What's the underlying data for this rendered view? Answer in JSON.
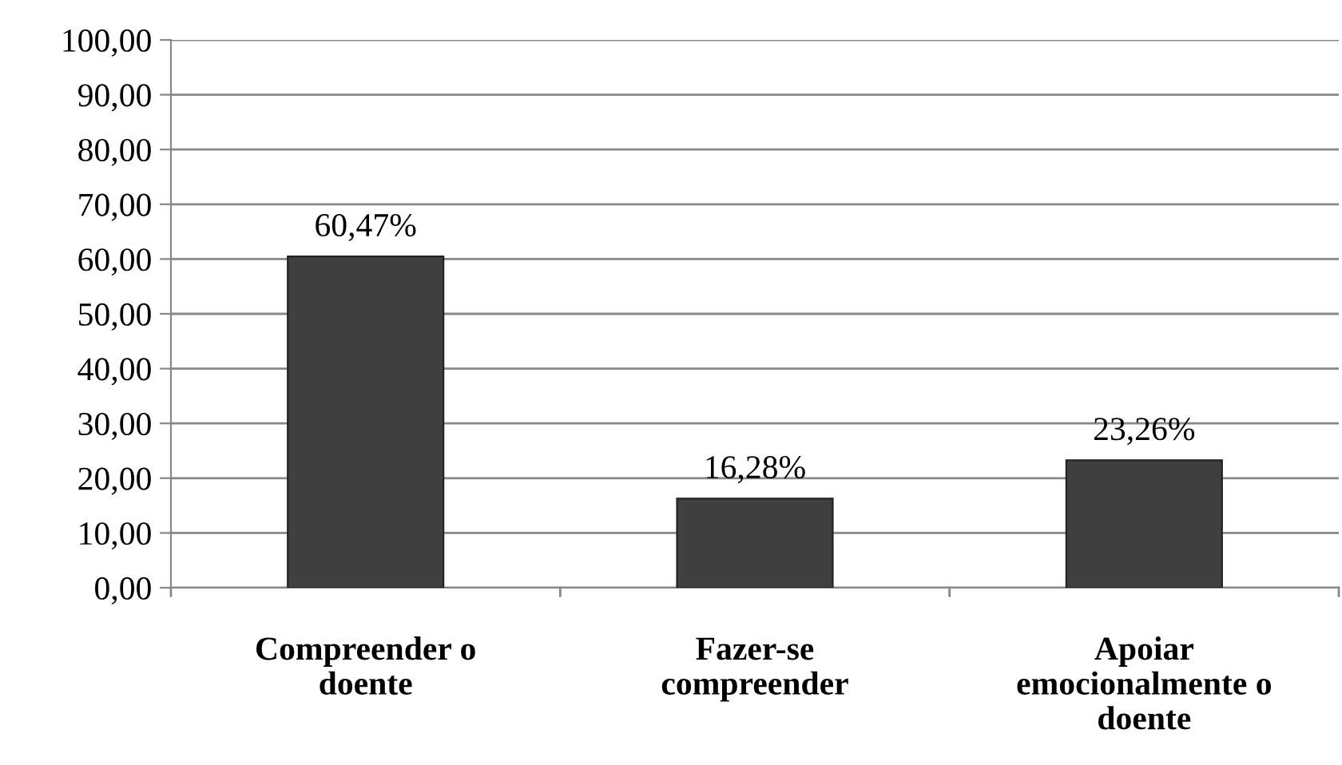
{
  "chart_data": {
    "type": "bar",
    "categories": [
      "Compreender o\ndoente",
      "Fazer-se\ncompreender",
      "Apoiar\nemocionalmente o\ndoente"
    ],
    "values": [
      60.47,
      16.28,
      23.26
    ],
    "color": "#404040",
    "value_labels": [
      "60,47%",
      "16,28%",
      "23,26%"
    ],
    "ylim": [
      0,
      100
    ],
    "yticks": [
      {
        "value": 0,
        "label": "0,00"
      },
      {
        "value": 10,
        "label": "10,00"
      },
      {
        "value": 20,
        "label": "20,00"
      },
      {
        "value": 30,
        "label": "30,00"
      },
      {
        "value": 40,
        "label": "40,00"
      },
      {
        "value": 50,
        "label": "50,00"
      },
      {
        "value": 60,
        "label": "60,00"
      },
      {
        "value": 70,
        "label": "70,00"
      },
      {
        "value": 80,
        "label": "80,00"
      },
      {
        "value": 90,
        "label": "90,00"
      },
      {
        "value": 100,
        "label": "100,00"
      }
    ],
    "grid": "y",
    "legend": false
  }
}
